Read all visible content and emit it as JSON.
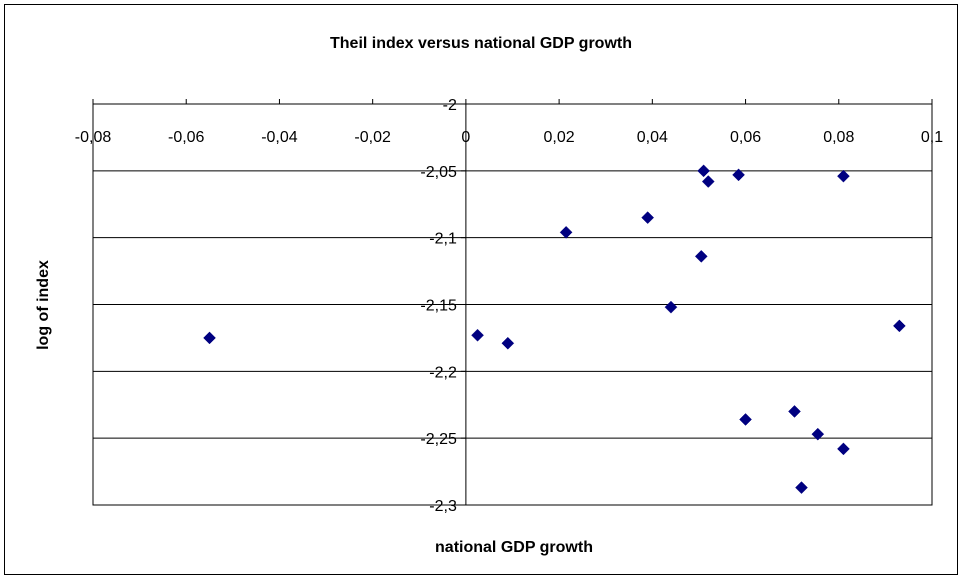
{
  "chart_data": {
    "type": "scatter",
    "title": "Theil index versus national GDP growth",
    "xlabel": "national GDP growth",
    "ylabel": "log of index",
    "xlim": [
      -0.08,
      0.1
    ],
    "ylim": [
      -2.3,
      -2
    ],
    "x_ticks": [
      "-0,08",
      "-0,06",
      "-0,04",
      "-0,02",
      "0",
      "0,02",
      "0,04",
      "0,06",
      "0,08",
      "0,1"
    ],
    "y_ticks": [
      "-2",
      "-2,05",
      "-2,1",
      "-2,15",
      "-2,2",
      "-2,25",
      "-2,3"
    ],
    "x_tick_values": [
      -0.08,
      -0.06,
      -0.04,
      -0.02,
      0,
      0.02,
      0.04,
      0.06,
      0.08,
      0.1
    ],
    "y_tick_values": [
      -2,
      -2.05,
      -2.1,
      -2.15,
      -2.2,
      -2.25,
      -2.3
    ],
    "grid": "horizontal",
    "marker_color": "#000080",
    "points": [
      {
        "x": -0.055,
        "y": -2.175
      },
      {
        "x": 0.0025,
        "y": -2.173
      },
      {
        "x": 0.009,
        "y": -2.179
      },
      {
        "x": 0.0215,
        "y": -2.096
      },
      {
        "x": 0.039,
        "y": -2.085
      },
      {
        "x": 0.044,
        "y": -2.152
      },
      {
        "x": 0.0505,
        "y": -2.114
      },
      {
        "x": 0.051,
        "y": -2.05
      },
      {
        "x": 0.052,
        "y": -2.058
      },
      {
        "x": 0.0585,
        "y": -2.053
      },
      {
        "x": 0.06,
        "y": -2.236
      },
      {
        "x": 0.0705,
        "y": -2.23
      },
      {
        "x": 0.072,
        "y": -2.287
      },
      {
        "x": 0.0755,
        "y": -2.247
      },
      {
        "x": 0.081,
        "y": -2.054
      },
      {
        "x": 0.081,
        "y": -2.258
      },
      {
        "x": 0.093,
        "y": -2.166
      }
    ]
  }
}
